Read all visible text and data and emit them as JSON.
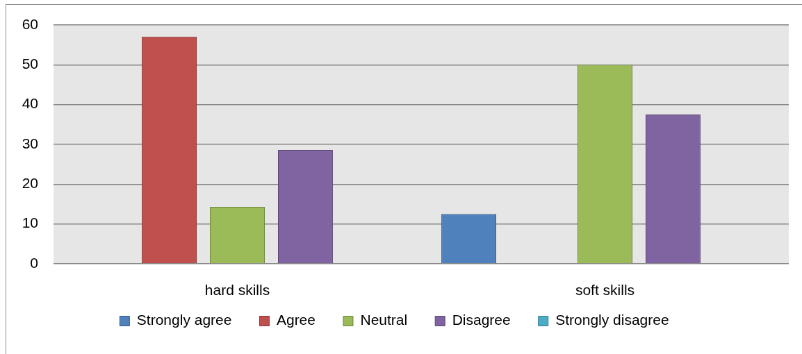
{
  "chart_data": {
    "type": "bar",
    "categories": [
      "hard skills",
      "soft skills"
    ],
    "series": [
      {
        "name": "Strongly agree",
        "color": "#4f81bd",
        "values": [
          0,
          12.5
        ]
      },
      {
        "name": "Agree",
        "color": "#c0504d",
        "values": [
          57.1,
          0
        ]
      },
      {
        "name": "Neutral",
        "color": "#9bbb59",
        "values": [
          14.3,
          50
        ]
      },
      {
        "name": "Disagree",
        "color": "#8064a2",
        "values": [
          28.6,
          37.5
        ]
      },
      {
        "name": "Strongly disagree",
        "color": "#4bacc6",
        "values": [
          0,
          0
        ]
      }
    ],
    "ylim": [
      0,
      60
    ],
    "yticks": [
      0,
      10,
      20,
      30,
      40,
      50,
      60
    ],
    "grid": "y",
    "legend": "bottom"
  }
}
